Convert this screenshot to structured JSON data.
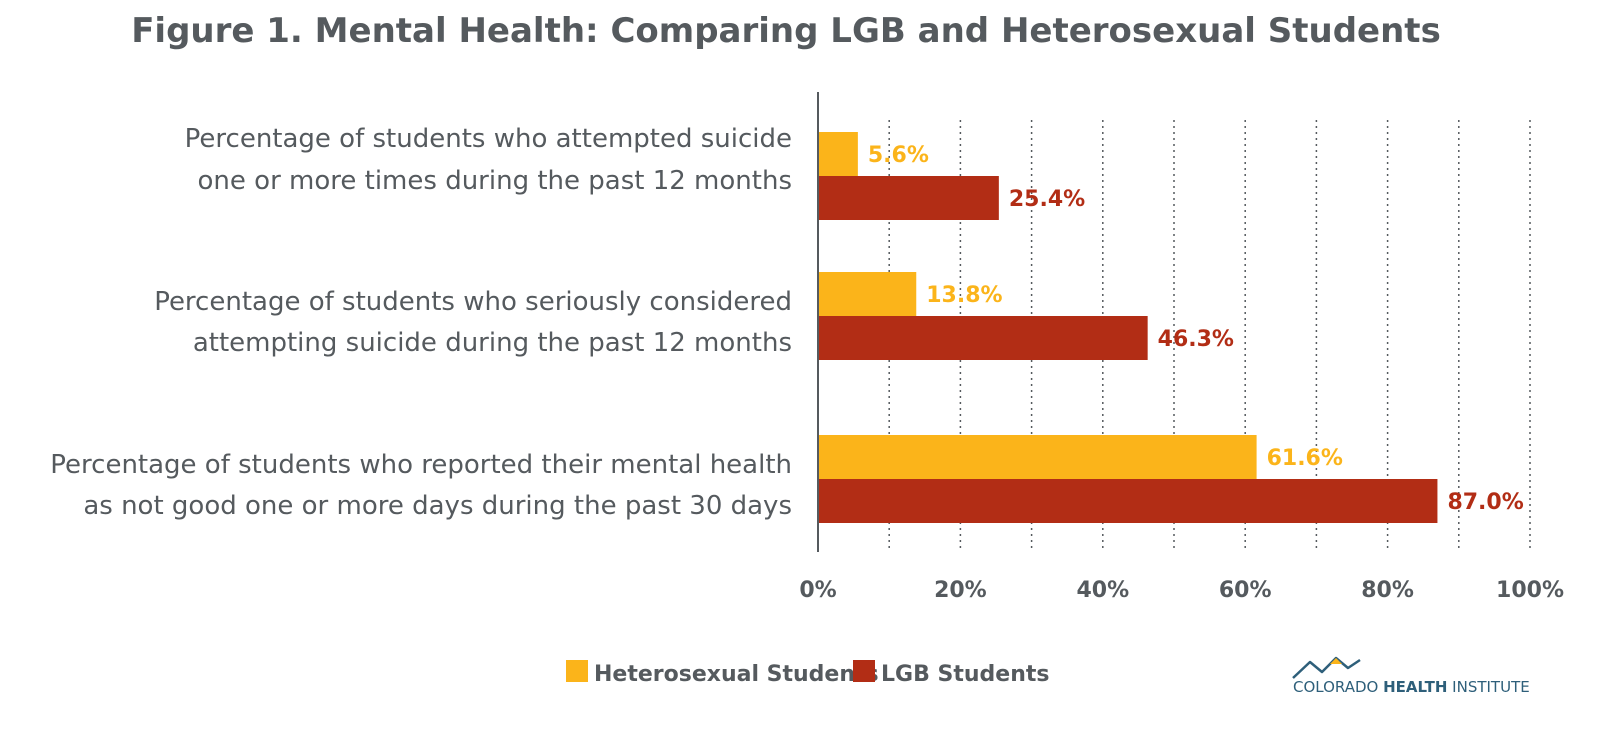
{
  "chart_data": {
    "type": "bar",
    "orientation": "horizontal",
    "title": "Figure 1. Mental Health: Comparing LGB and Heterosexual Students",
    "categories": [
      [
        "Percentage of students who attempted suicide",
        "one or more times during the past 12 months"
      ],
      [
        "Percentage of students who seriously considered",
        "attempting suicide during the past 12 months"
      ],
      [
        "Percentage of students who reported their mental health",
        "as not good one or more days during the past 30 days"
      ]
    ],
    "series": [
      {
        "name": "Heterosexual Students",
        "color": "#fbb41a",
        "values": [
          5.6,
          13.8,
          61.6
        ],
        "labels": [
          "5.6%",
          "13.8%",
          "61.6%"
        ]
      },
      {
        "name": "LGB Students",
        "color": "#b22d15",
        "values": [
          25.4,
          46.3,
          87.0
        ],
        "labels": [
          "25.4%",
          "46.3%",
          "87.0%"
        ]
      }
    ],
    "xlim": [
      0,
      100
    ],
    "ticks": [
      0,
      20,
      40,
      60,
      80,
      100
    ],
    "tick_labels": [
      "0%",
      "20%",
      "40%",
      "60%",
      "80%",
      "100%"
    ],
    "grid": "dotted vertical",
    "legend_position": "bottom-center",
    "xlabel": "",
    "ylabel": ""
  },
  "logo": {
    "text_plain": "COLORADO ",
    "text_bold": "HEALTH",
    "text_end": " INSTITUTE",
    "icon": "mountain-logo-icon",
    "color": "#2e5f7a",
    "accent": "#fbb41a"
  }
}
